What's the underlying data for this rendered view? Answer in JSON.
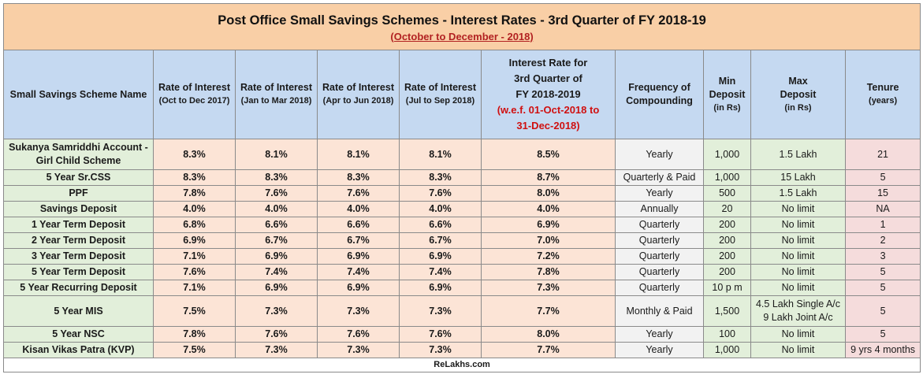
{
  "title": "Post Office Small Savings Schemes - Interest Rates - 3rd Quarter of FY 2018-19",
  "subtitle": "(October to December - 2018)",
  "headers": {
    "name": "Small Savings Scheme Name",
    "r1_a": "Rate of Interest",
    "r1_b": "(Oct to Dec 2017)",
    "r2_a": "Rate of Interest",
    "r2_b": "(Jan to Mar 2018)",
    "r3_a": "Rate of Interest",
    "r3_b": "(Apr to Jun 2018)",
    "r4_a": "Rate of Interest",
    "r4_b": "(Jul to Sep 2018)",
    "cur_a": "Interest Rate for",
    "cur_b": "3rd Quarter of",
    "cur_c": "FY 2018-2019",
    "cur_d": "(w.e.f. 01-Oct-2018 to",
    "cur_e": "31-Dec-2018)",
    "freq_a": "Frequency of",
    "freq_b": "Compounding",
    "min_a": "Min",
    "min_b": "Deposit",
    "min_c": "(in Rs)",
    "max_a": "Max",
    "max_b": "Deposit",
    "max_c": "(in Rs)",
    "ten_a": "Tenure",
    "ten_b": "(years)"
  },
  "rows": [
    {
      "name_a": "Sukanya Samriddhi Account -",
      "name_b": "Girl Child Scheme",
      "r1": "8.3%",
      "r2": "8.1%",
      "r3": "8.1%",
      "r4": "8.1%",
      "cur": "8.5%",
      "freq": "Yearly",
      "min": "1,000",
      "max_a": "1.5 Lakh",
      "max_b": "",
      "tenure": "21"
    },
    {
      "name_a": "5 Year Sr.CSS",
      "name_b": "",
      "r1": "8.3%",
      "r2": "8.3%",
      "r3": "8.3%",
      "r4": "8.3%",
      "cur": "8.7%",
      "freq": "Quarterly & Paid",
      "min": "1,000",
      "max_a": "15 Lakh",
      "max_b": "",
      "tenure": "5"
    },
    {
      "name_a": "PPF",
      "name_b": "",
      "r1": "7.8%",
      "r2": "7.6%",
      "r3": "7.6%",
      "r4": "7.6%",
      "cur": "8.0%",
      "freq": "Yearly",
      "min": "500",
      "max_a": "1.5 Lakh",
      "max_b": "",
      "tenure": "15"
    },
    {
      "name_a": "Savings Deposit",
      "name_b": "",
      "r1": "4.0%",
      "r2": "4.0%",
      "r3": "4.0%",
      "r4": "4.0%",
      "cur": "4.0%",
      "freq": "Annually",
      "min": "20",
      "max_a": "No limit",
      "max_b": "",
      "tenure": "NA"
    },
    {
      "name_a": "1 Year Term Deposit",
      "name_b": "",
      "r1": "6.8%",
      "r2": "6.6%",
      "r3": "6.6%",
      "r4": "6.6%",
      "cur": "6.9%",
      "freq": "Quarterly",
      "min": "200",
      "max_a": "No limit",
      "max_b": "",
      "tenure": "1"
    },
    {
      "name_a": "2 Year Term Deposit",
      "name_b": "",
      "r1": "6.9%",
      "r2": "6.7%",
      "r3": "6.7%",
      "r4": "6.7%",
      "cur": "7.0%",
      "freq": "Quarterly",
      "min": "200",
      "max_a": "No limit",
      "max_b": "",
      "tenure": "2"
    },
    {
      "name_a": "3 Year Term Deposit",
      "name_b": "",
      "r1": "7.1%",
      "r2": "6.9%",
      "r3": "6.9%",
      "r4": "6.9%",
      "cur": "7.2%",
      "freq": "Quarterly",
      "min": "200",
      "max_a": "No limit",
      "max_b": "",
      "tenure": "3"
    },
    {
      "name_a": "5 Year Term Deposit",
      "name_b": "",
      "r1": "7.6%",
      "r2": "7.4%",
      "r3": "7.4%",
      "r4": "7.4%",
      "cur": "7.8%",
      "freq": "Quarterly",
      "min": "200",
      "max_a": "No limit",
      "max_b": "",
      "tenure": "5"
    },
    {
      "name_a": "5 Year Recurring Deposit",
      "name_b": "",
      "r1": "7.1%",
      "r2": "6.9%",
      "r3": "6.9%",
      "r4": "6.9%",
      "cur": "7.3%",
      "freq": "Quarterly",
      "min": "10 p m",
      "max_a": "No limit",
      "max_b": "",
      "tenure": "5"
    },
    {
      "name_a": "5 Year MIS",
      "name_b": "",
      "r1": "7.5%",
      "r2": "7.3%",
      "r3": "7.3%",
      "r4": "7.3%",
      "cur": "7.7%",
      "freq": "Monthly & Paid",
      "min": "1,500",
      "max_a": "4.5 Lakh Single A/c",
      "max_b": "9 Lakh Joint A/c",
      "tenure": "5"
    },
    {
      "name_a": "5 Year NSC",
      "name_b": "",
      "r1": "7.8%",
      "r2": "7.6%",
      "r3": "7.6%",
      "r4": "7.6%",
      "cur": "8.0%",
      "freq": "Yearly",
      "min": "100",
      "max_a": "No limit",
      "max_b": "",
      "tenure": "5"
    },
    {
      "name_a": "Kisan Vikas Patra (KVP)",
      "name_b": "",
      "r1": "7.5%",
      "r2": "7.3%",
      "r3": "7.3%",
      "r4": "7.3%",
      "cur": "7.7%",
      "freq": "Yearly",
      "min": "1,000",
      "max_a": "No limit",
      "max_b": "",
      "tenure": "9 yrs  4 months"
    }
  ],
  "footer": "ReLakhs.com"
}
